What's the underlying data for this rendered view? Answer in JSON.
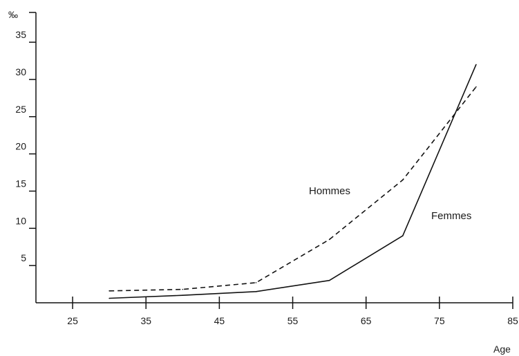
{
  "chart_data": {
    "type": "line",
    "ylabel": "‰",
    "xlabel": "Age",
    "xlim": [
      20,
      85
    ],
    "ylim": [
      0,
      39
    ],
    "x_ticks": [
      25,
      35,
      45,
      55,
      65,
      75,
      85
    ],
    "y_ticks": [
      5,
      10,
      15,
      20,
      25,
      30,
      35
    ],
    "grid": false,
    "series": [
      {
        "name": "Hommes",
        "style": "dashed",
        "color": "#111111",
        "x": [
          30,
          40,
          50,
          60,
          70,
          80
        ],
        "y": [
          1.6,
          1.8,
          2.7,
          8.5,
          16.5,
          29.0
        ]
      },
      {
        "name": "Femmes",
        "style": "solid",
        "color": "#111111",
        "x": [
          30,
          40,
          50,
          60,
          70,
          80
        ],
        "y": [
          0.6,
          1.0,
          1.5,
          3.0,
          9.0,
          32.0
        ]
      }
    ]
  }
}
